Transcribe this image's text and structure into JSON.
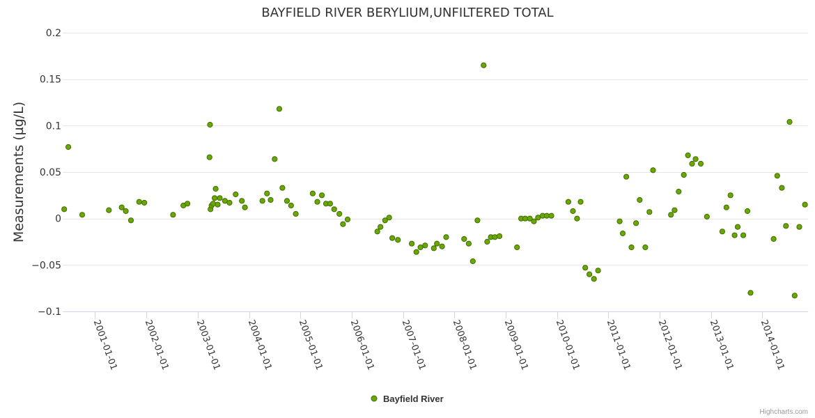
{
  "chart_data": {
    "type": "scatter",
    "title": "BAYFIELD RIVER BERYLIUM,UNFILTERED TOTAL",
    "xlabel": "",
    "ylabel": "Measurements (µg/L)",
    "ylim": [
      -0.1,
      0.2
    ],
    "yticks": [
      -0.1,
      -0.05,
      0,
      0.05,
      0.1,
      0.15,
      0.2
    ],
    "ytick_labels": [
      "−0.1",
      "−0.05",
      "0",
      "0.05",
      "0.1",
      "0.15",
      "0.2"
    ],
    "xlim": [
      2000.37,
      2014.89
    ],
    "xticks": [
      2001,
      2002,
      2003,
      2004,
      2005,
      2006,
      2007,
      2008,
      2009,
      2010,
      2011,
      2012,
      2013,
      2014
    ],
    "xtick_labels": [
      "2001-01-01",
      "2002-01-01",
      "2003-01-01",
      "2004-01-01",
      "2005-01-01",
      "2006-01-01",
      "2007-01-01",
      "2008-01-01",
      "2009-01-01",
      "2010-01-01",
      "2011-01-01",
      "2012-01-01",
      "2013-01-01",
      "2014-01-01"
    ],
    "grid": true,
    "legend_position": "bottom-center",
    "series": [
      {
        "name": "Bayfield River",
        "color": "#5a9a00",
        "x": [
          2000.4,
          2000.48,
          2000.75,
          2001.27,
          2001.52,
          2001.6,
          2001.7,
          2001.86,
          2001.96,
          2002.52,
          2002.72,
          2002.8,
          2003.23,
          2003.24,
          2003.25,
          2003.27,
          2003.3,
          2003.33,
          2003.35,
          2003.39,
          2003.43,
          2003.53,
          2003.62,
          2003.74,
          2003.86,
          2003.92,
          2004.26,
          2004.35,
          2004.42,
          2004.5,
          2004.59,
          2004.65,
          2004.74,
          2004.82,
          2004.91,
          2005.24,
          2005.33,
          2005.42,
          2005.5,
          2005.58,
          2005.66,
          2005.76,
          2005.83,
          2005.92,
          2006.5,
          2006.56,
          2006.65,
          2006.73,
          2006.79,
          2006.9,
          2007.17,
          2007.26,
          2007.34,
          2007.43,
          2007.6,
          2007.66,
          2007.76,
          2007.84,
          2008.19,
          2008.28,
          2008.36,
          2008.45,
          2008.57,
          2008.64,
          2008.71,
          2008.79,
          2008.88,
          2009.22,
          2009.3,
          2009.38,
          2009.47,
          2009.55,
          2009.63,
          2009.72,
          2009.8,
          2009.89,
          2010.22,
          2010.31,
          2010.39,
          2010.46,
          2010.55,
          2010.63,
          2010.72,
          2010.8,
          2011.22,
          2011.28,
          2011.35,
          2011.45,
          2011.54,
          2011.61,
          2011.72,
          2011.8,
          2011.87,
          2012.22,
          2012.29,
          2012.37,
          2012.47,
          2012.55,
          2012.63,
          2012.7,
          2012.8,
          2012.92,
          2013.22,
          2013.3,
          2013.38,
          2013.46,
          2013.52,
          2013.63,
          2013.71,
          2013.77,
          2014.22,
          2014.29,
          2014.38,
          2014.46,
          2014.53,
          2014.63,
          2014.72,
          2014.83
        ],
        "y": [
          0.01,
          0.077,
          0.004,
          0.009,
          0.012,
          0.008,
          -0.002,
          0.018,
          0.017,
          0.004,
          0.014,
          0.016,
          0.066,
          0.101,
          0.01,
          0.014,
          0.016,
          0.022,
          0.032,
          0.015,
          0.022,
          0.019,
          0.017,
          0.026,
          0.019,
          0.012,
          0.019,
          0.027,
          0.02,
          0.064,
          0.118,
          0.033,
          0.019,
          0.014,
          0.005,
          0.027,
          0.018,
          0.025,
          0.016,
          0.016,
          0.01,
          0.005,
          -0.006,
          -0.001,
          -0.014,
          -0.009,
          -0.002,
          0.001,
          -0.021,
          -0.023,
          -0.027,
          -0.036,
          -0.031,
          -0.029,
          -0.032,
          -0.027,
          -0.03,
          -0.02,
          -0.022,
          -0.027,
          -0.046,
          -0.002,
          0.165,
          -0.025,
          -0.02,
          -0.02,
          -0.019,
          -0.031,
          0.0,
          0.0,
          0.0,
          -0.003,
          0.001,
          0.003,
          0.003,
          0.003,
          0.018,
          0.008,
          0.0,
          0.018,
          -0.053,
          -0.06,
          -0.065,
          -0.056,
          -0.003,
          -0.016,
          0.045,
          -0.031,
          -0.005,
          0.02,
          -0.031,
          0.007,
          0.052,
          0.004,
          0.009,
          0.029,
          0.047,
          0.068,
          0.059,
          0.064,
          0.059,
          0.002,
          -0.014,
          0.012,
          0.025,
          -0.018,
          -0.009,
          -0.018,
          0.008,
          -0.08,
          -0.022,
          0.046,
          0.033,
          -0.008,
          0.104,
          -0.083,
          -0.009,
          0.015
        ]
      }
    ]
  },
  "legend": {
    "label": "Bayfield River"
  },
  "credits": {
    "text": "Highcharts.com"
  }
}
